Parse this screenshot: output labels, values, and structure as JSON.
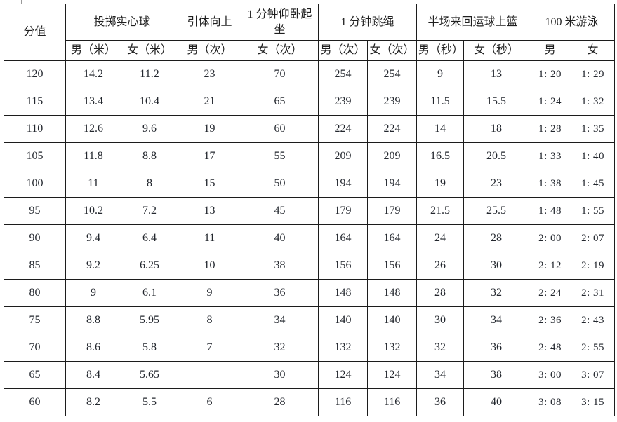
{
  "table": {
    "header": {
      "score_label": "分值",
      "groups": [
        {
          "label": "投掷实心球",
          "cols": [
            "男（米）",
            "女（米）"
          ]
        },
        {
          "label": "引体向上",
          "cols": [
            "男（次）"
          ]
        },
        {
          "label": "1 分钟仰卧起坐",
          "cols": [
            "女（次）"
          ]
        },
        {
          "label": "1 分钟跳绳",
          "cols": [
            "男（次）",
            "女（次）"
          ]
        },
        {
          "label": "半场来回运球上篮",
          "cols": [
            "男（秒）",
            "女（秒）"
          ]
        },
        {
          "label": "100 米游泳",
          "cols": [
            "男",
            "女"
          ]
        }
      ]
    },
    "rows": [
      [
        "120",
        "14.2",
        "11.2",
        "23",
        "70",
        "254",
        "254",
        "9",
        "13",
        "1: 20",
        "1: 29"
      ],
      [
        "115",
        "13.4",
        "10.4",
        "21",
        "65",
        "239",
        "239",
        "11.5",
        "15.5",
        "1: 24",
        "1: 32"
      ],
      [
        "110",
        "12.6",
        "9.6",
        "19",
        "60",
        "224",
        "224",
        "14",
        "18",
        "1: 28",
        "1: 35"
      ],
      [
        "105",
        "11.8",
        "8.8",
        "17",
        "55",
        "209",
        "209",
        "16.5",
        "20.5",
        "1: 33",
        "1: 40"
      ],
      [
        "100",
        "11",
        "8",
        "15",
        "50",
        "194",
        "194",
        "19",
        "23",
        "1: 38",
        "1: 45"
      ],
      [
        "95",
        "10.2",
        "7.2",
        "13",
        "45",
        "179",
        "179",
        "21.5",
        "25.5",
        "1: 48",
        "1: 55"
      ],
      [
        "90",
        "9.4",
        "6.4",
        "11",
        "40",
        "164",
        "164",
        "24",
        "28",
        "2: 00",
        "2: 07"
      ],
      [
        "85",
        "9.2",
        "6.25",
        "10",
        "38",
        "156",
        "156",
        "26",
        "30",
        "2: 12",
        "2: 19"
      ],
      [
        "80",
        "9",
        "6.1",
        "9",
        "36",
        "148",
        "148",
        "28",
        "32",
        "2: 24",
        "2: 31"
      ],
      [
        "75",
        "8.8",
        "5.95",
        "8",
        "34",
        "140",
        "140",
        "30",
        "34",
        "2: 36",
        "2: 43"
      ],
      [
        "70",
        "8.6",
        "5.8",
        "7",
        "32",
        "132",
        "132",
        "32",
        "36",
        "2: 48",
        "2: 55"
      ],
      [
        "65",
        "8.4",
        "5.65",
        "",
        "30",
        "124",
        "124",
        "34",
        "38",
        "3: 00",
        "3: 07"
      ],
      [
        "60",
        "8.2",
        "5.5",
        "6",
        "28",
        "116",
        "116",
        "36",
        "40",
        "3: 08",
        "3: 15"
      ]
    ]
  }
}
